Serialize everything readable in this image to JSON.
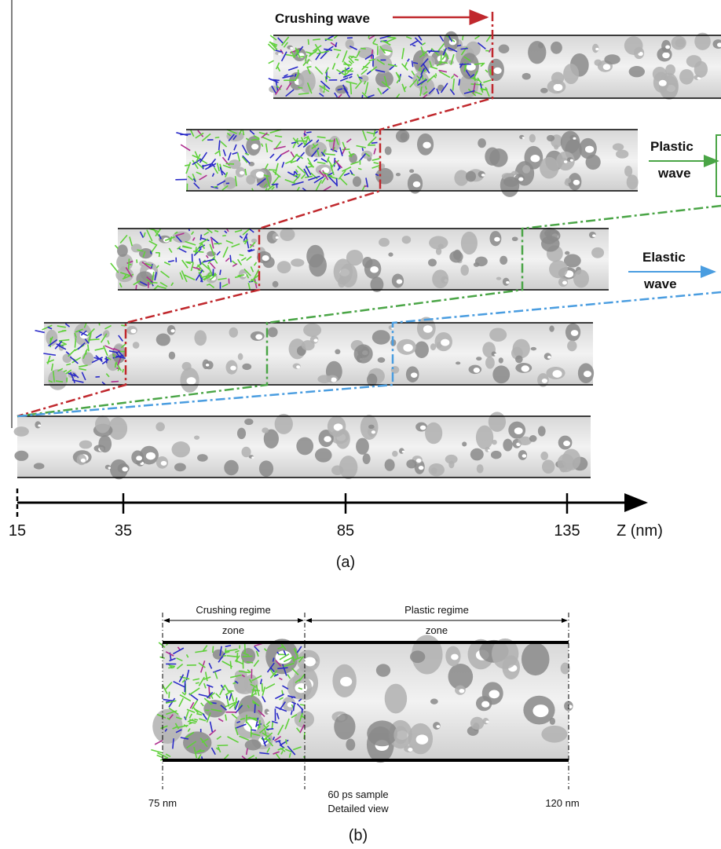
{
  "panel_a": {
    "crushing_wave": "Crushing wave",
    "plastic_wave": [
      "Plastic",
      "wave"
    ],
    "elastic_wave": [
      "Elastic",
      "wave"
    ],
    "axis": {
      "ticks": [
        "15",
        "35",
        "85",
        "135"
      ],
      "label": "Z (nm)"
    },
    "caption": "(a)"
  },
  "panel_b": {
    "crushing_zone": [
      "Crushing regime",
      "zone"
    ],
    "plastic_zone": [
      "Plastic regime",
      "zone"
    ],
    "left_label": "75 nm",
    "center_label": [
      "60 ps sample",
      "Detailed view"
    ],
    "right_label": "120 nm",
    "caption": "(b)"
  }
}
